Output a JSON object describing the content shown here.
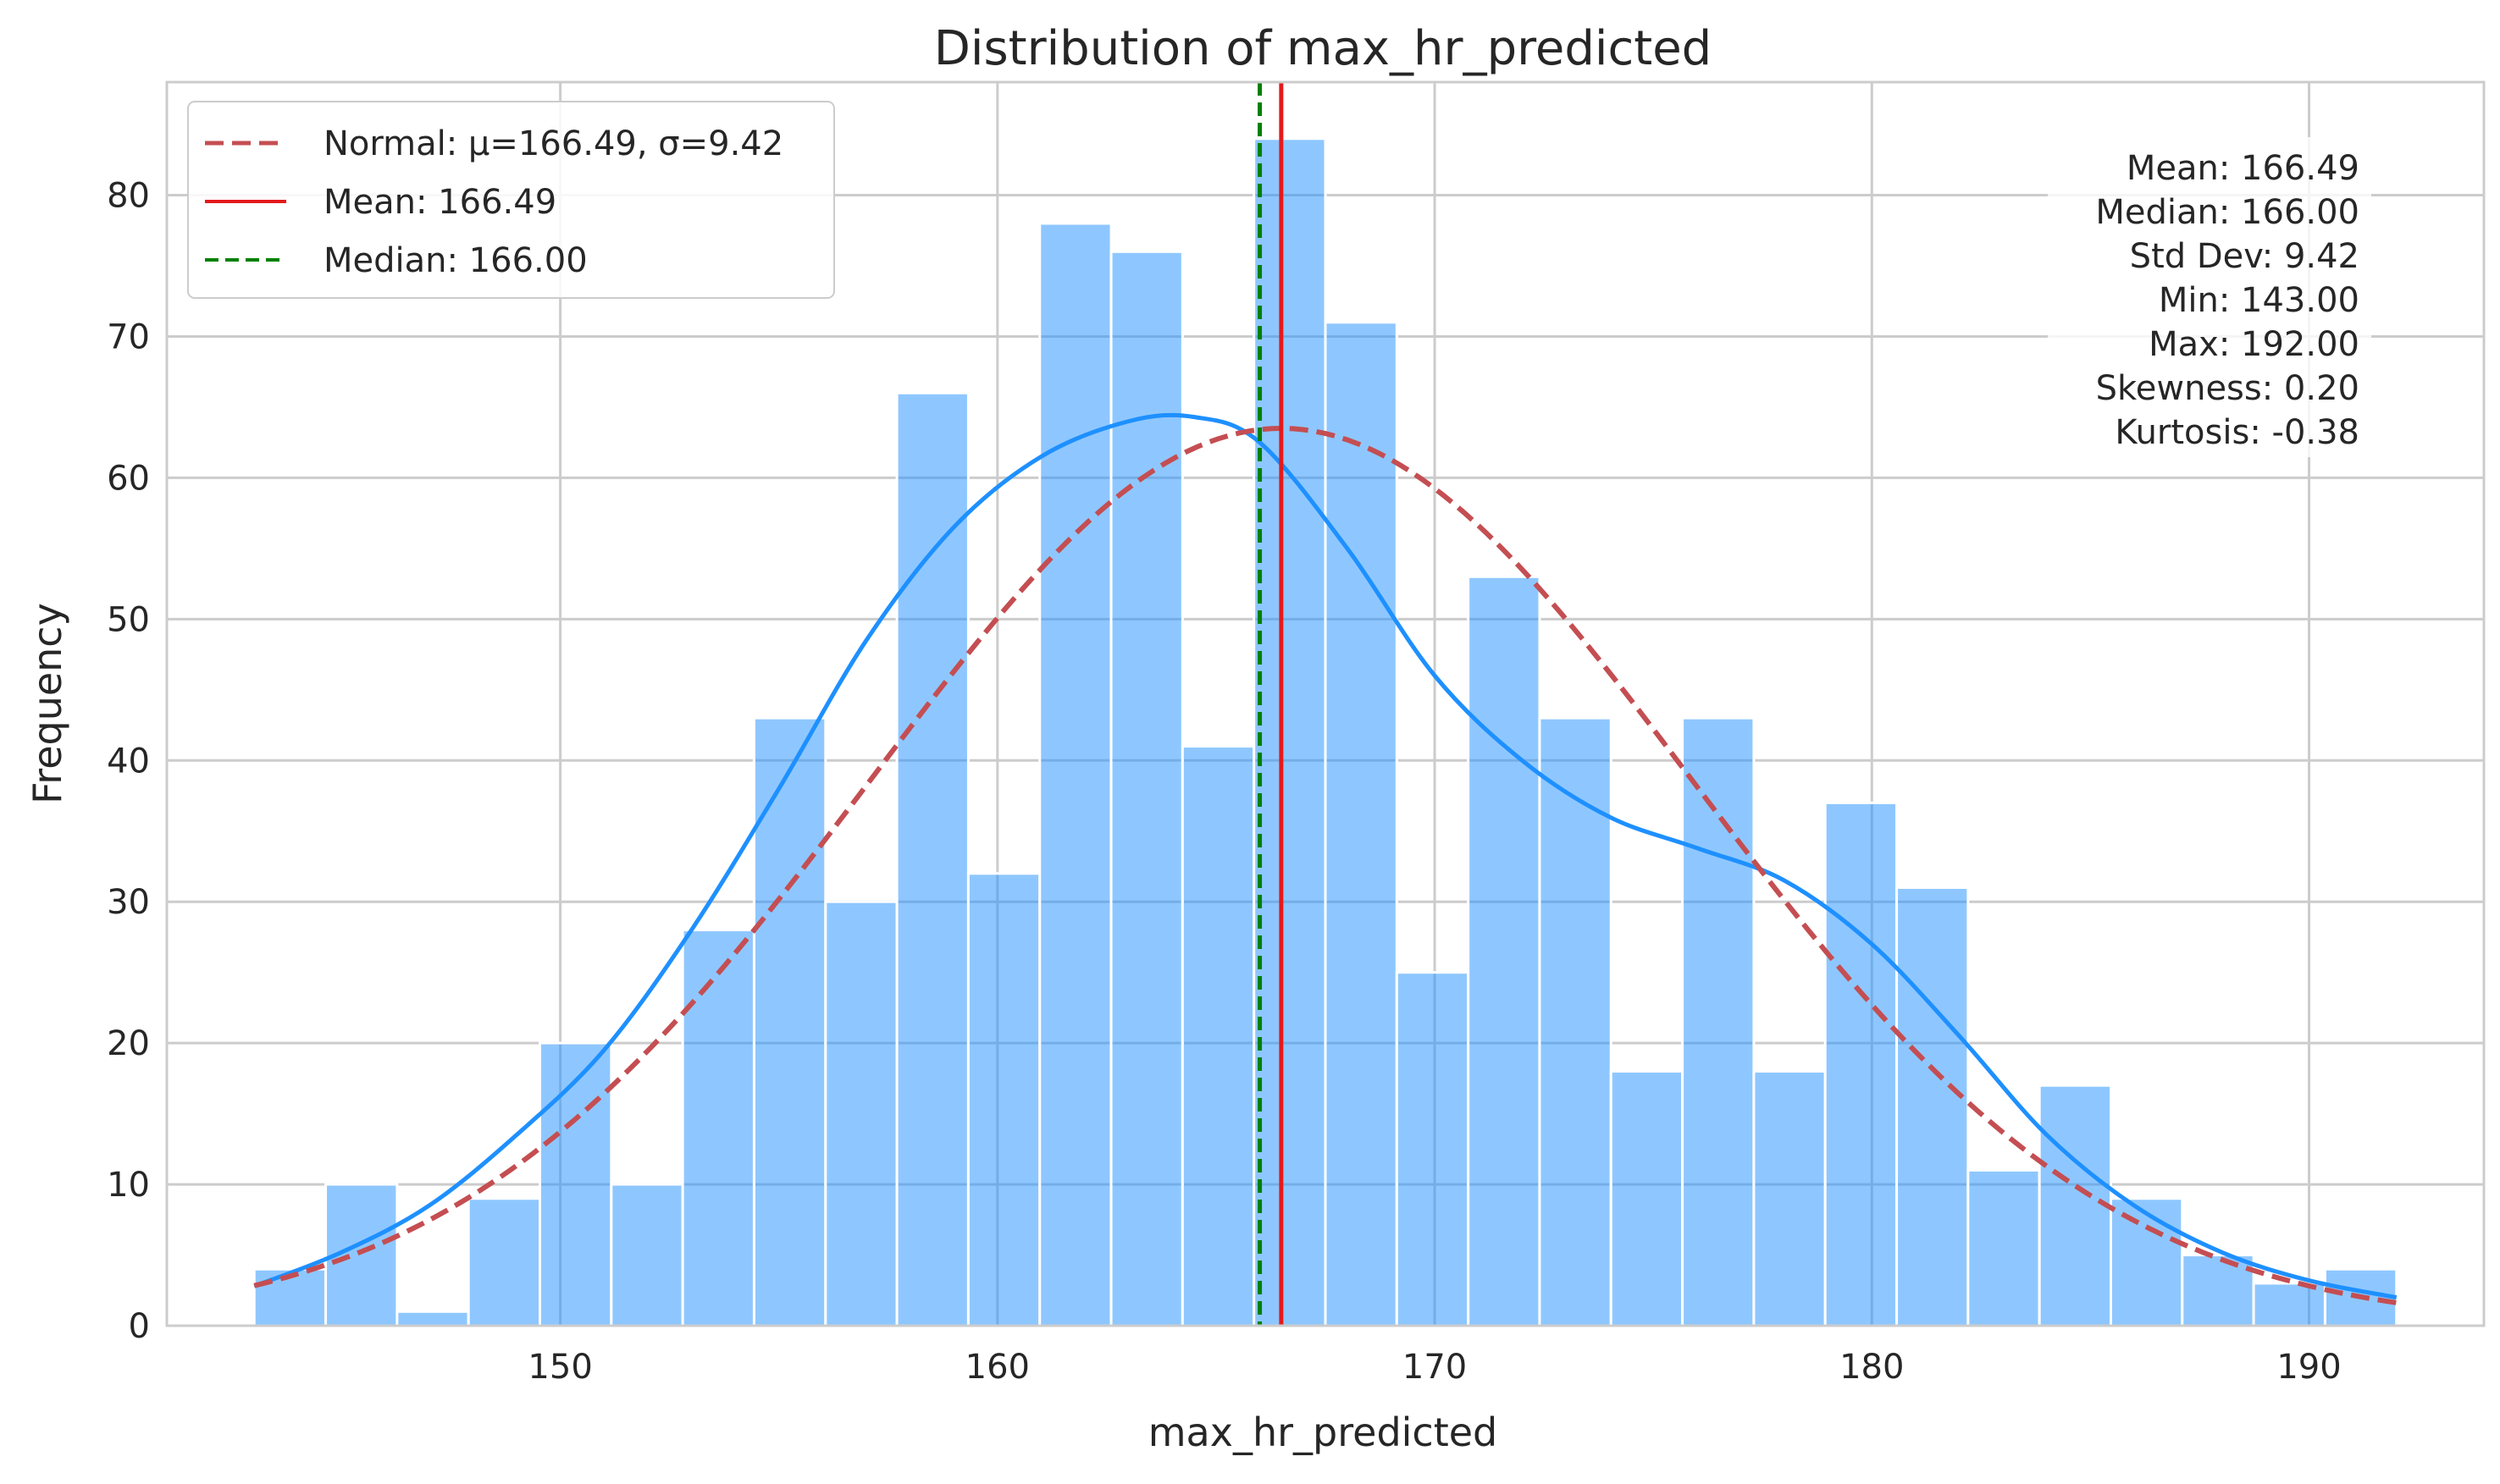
{
  "colors": {
    "bar_fill": "#1E90FF",
    "bar_opacity": 0.5,
    "bar_edge": "#ffffff",
    "kde": "#1E90FF",
    "normal": "#C44E52",
    "mean": "#E41A1C",
    "median": "#008000",
    "grid": "#CCCCCC",
    "frame": "#CCCCCC",
    "text": "#262626"
  },
  "legend": {
    "placement": "upper-left",
    "entries": [
      {
        "key": "normal",
        "label": "Normal: μ=166.49, σ=9.42",
        "style": "dashed"
      },
      {
        "key": "mean",
        "label": "Mean: 166.49",
        "style": "solid"
      },
      {
        "key": "median",
        "label": "Median: 166.00",
        "style": "dashed"
      }
    ]
  },
  "stats_box": {
    "placement": "upper-right",
    "lines": [
      "Mean: 166.49",
      "Median: 166.00",
      "Std Dev: 9.42",
      "Min: 143.00",
      "Max: 192.00",
      "Skewness: 0.20",
      "Kurtosis: -0.38"
    ]
  },
  "chart_data": {
    "type": "bar",
    "subtype": "histogram",
    "title": "Distribution of max_hr_predicted",
    "xlabel": "max_hr_predicted",
    "ylabel": "Frequency",
    "xlim": [
      141.0,
      194.0
    ],
    "ylim": [
      0,
      88
    ],
    "grid": true,
    "xticks": [
      150,
      160,
      170,
      180,
      190
    ],
    "yticks": [
      0,
      10,
      20,
      30,
      40,
      50,
      60,
      70,
      80
    ],
    "bin_edges": [
      143.0,
      144.633,
      146.267,
      147.9,
      149.533,
      151.167,
      152.8,
      154.433,
      156.067,
      157.7,
      159.333,
      160.967,
      162.6,
      164.233,
      165.867,
      167.5,
      169.133,
      170.767,
      172.4,
      174.033,
      175.667,
      177.3,
      178.933,
      180.567,
      182.2,
      183.833,
      185.467,
      187.1,
      188.733,
      190.367,
      192.0
    ],
    "counts": [
      4,
      10,
      1,
      9,
      20,
      10,
      28,
      43,
      30,
      66,
      32,
      78,
      76,
      41,
      84,
      71,
      25,
      53,
      43,
      18,
      43,
      18,
      37,
      31,
      11,
      17,
      9,
      5,
      3,
      4
    ],
    "kde": {
      "name": "KDE",
      "x": [
        143,
        145,
        147,
        149,
        151,
        153,
        155,
        157,
        159,
        161,
        163,
        164.5,
        166,
        168,
        170,
        172,
        174,
        176,
        178,
        180,
        182,
        184,
        186,
        188,
        190,
        192
      ],
      "y": [
        2.8,
        5.2,
        8.5,
        13.5,
        19.5,
        28,
        38,
        48.5,
        56.5,
        61.5,
        64,
        64.3,
        62.5,
        55,
        46,
        40,
        36,
        33.8,
        31.5,
        27,
        20.5,
        13.5,
        8.5,
        5.2,
        3.2,
        2
      ]
    },
    "normal_fit": {
      "mu": 166.49,
      "sigma": 9.42,
      "peak": 63.5,
      "x_start": 143,
      "x_end": 192
    },
    "mean": 166.49,
    "median": 166.0
  }
}
